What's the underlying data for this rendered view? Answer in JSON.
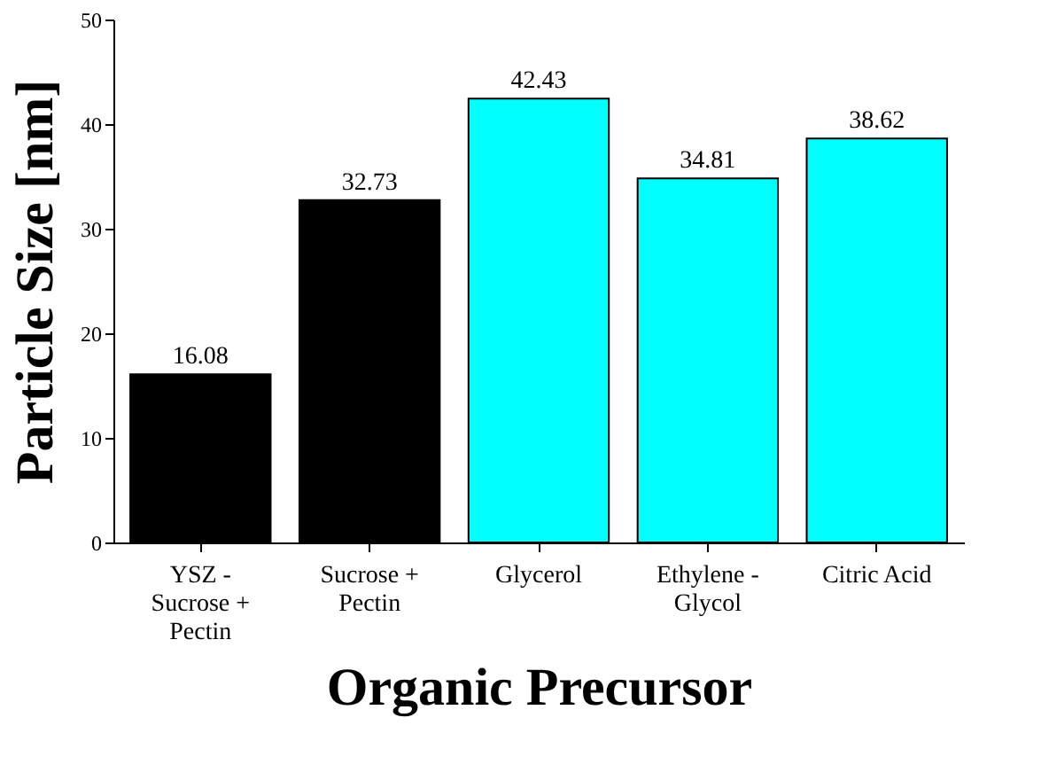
{
  "chart_data": {
    "type": "bar",
    "categories": [
      "YSZ - Sucrose + Pectin",
      "Sucrose + Pectin",
      "Glycerol",
      "Ethylene - Glycol",
      "Citric Acid"
    ],
    "values": [
      16.08,
      32.73,
      42.43,
      34.81,
      38.62
    ],
    "colors": [
      "#000000",
      "#000000",
      "#00ffff",
      "#00ffff",
      "#00ffff"
    ],
    "xlabel": "Organic Precursor",
    "ylabel": "Particle Size [nm]",
    "ylim": [
      0,
      50
    ],
    "yticks": [
      0,
      10,
      20,
      30,
      40,
      50
    ],
    "data_labels": true,
    "grid": false
  }
}
